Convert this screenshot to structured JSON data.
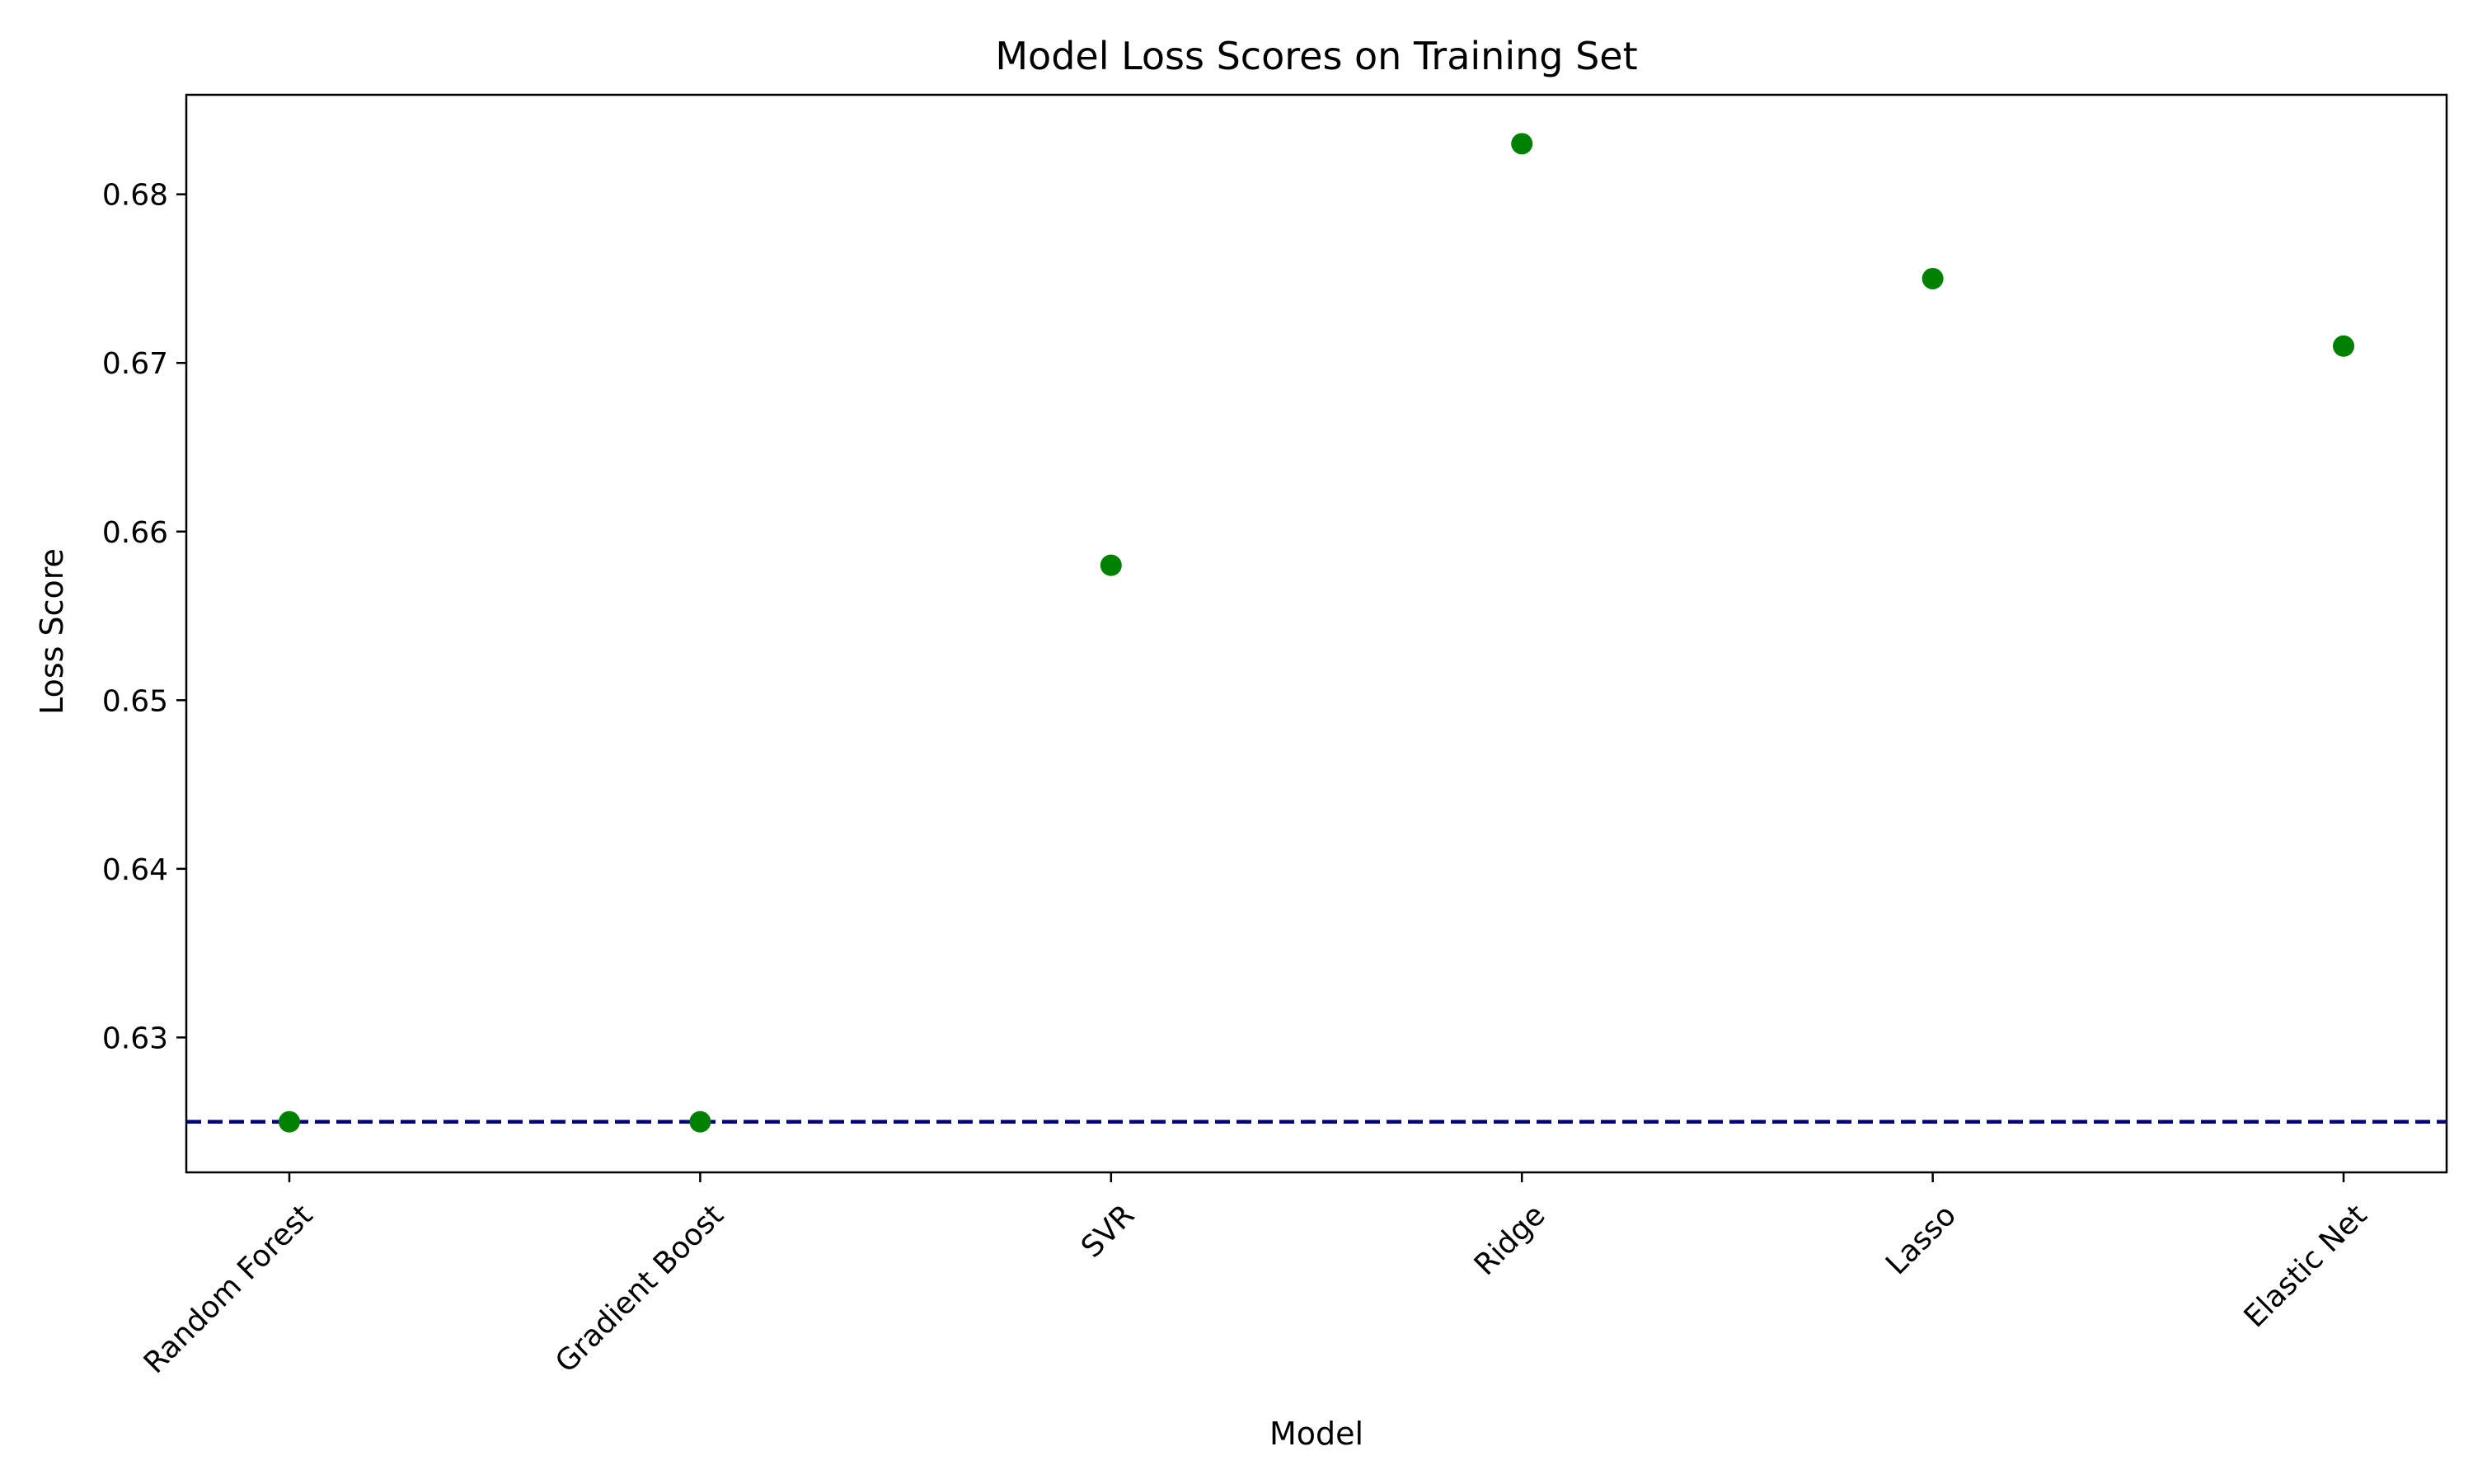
{
  "chart_data": {
    "type": "scatter",
    "title": "Model Loss Scores on Training Set",
    "xlabel": "Model",
    "ylabel": "Loss Score",
    "categories": [
      "Random Forest",
      "Gradient Boost",
      "SVR",
      "Ridge",
      "Lasso",
      "Elastic Net"
    ],
    "series": [
      {
        "values": [
          0.625,
          0.625,
          0.658,
          0.683,
          0.675,
          0.671
        ]
      }
    ],
    "reference_line": {
      "y": 0.625,
      "style": "dashed"
    },
    "yticks": [
      0.63,
      0.64,
      0.65,
      0.66,
      0.67,
      0.68
    ],
    "ytick_labels": [
      "0.63",
      "0.64",
      "0.65",
      "0.66",
      "0.67",
      "0.68"
    ],
    "ylim": [
      0.622,
      0.6859
    ],
    "grid": false,
    "legend": "none",
    "colors": {
      "points": "#008000",
      "reference_line": "#000080",
      "axes": "#000000"
    }
  }
}
